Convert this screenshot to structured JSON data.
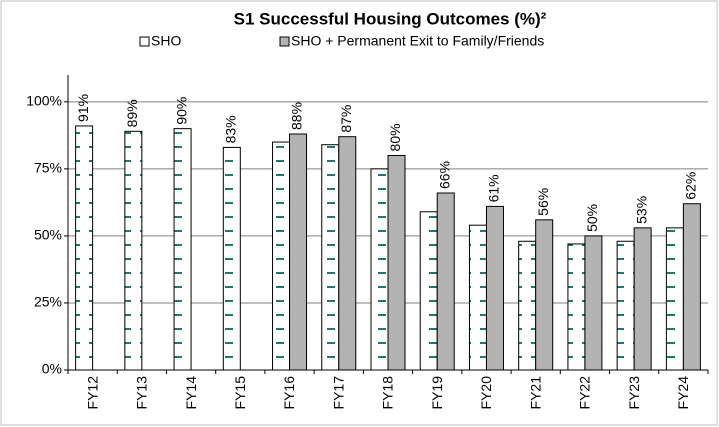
{
  "chart_data": {
    "type": "bar",
    "title": "S1 Successful Housing Outcomes (%)²",
    "categories": [
      "FY12",
      "FY13",
      "FY14",
      "FY15",
      "FY16",
      "FY17",
      "FY18",
      "FY19",
      "FY20",
      "FY21",
      "FY22",
      "FY23",
      "FY24"
    ],
    "series": [
      {
        "name": "SHO",
        "color": "#1f7a6e",
        "values": [
          91,
          89,
          90,
          83,
          85,
          84,
          75,
          59,
          54,
          48,
          47,
          48,
          53
        ],
        "value_labels": [
          "91%",
          "89%",
          "90%",
          "83%",
          null,
          null,
          null,
          null,
          null,
          null,
          null,
          null,
          null
        ]
      },
      {
        "name": "SHO + Permanent Exit to Family/Friends",
        "color": "#b3b3b3",
        "values": [
          null,
          null,
          null,
          null,
          88,
          87,
          80,
          66,
          61,
          56,
          50,
          53,
          62
        ],
        "value_labels": [
          null,
          null,
          null,
          null,
          "88%",
          "87%",
          "80%",
          "66%",
          "61%",
          "56%",
          "50%",
          "53%",
          "62%"
        ]
      }
    ],
    "ylim": [
      0,
      110
    ],
    "yticks": [
      {
        "value": 0,
        "label": "0%"
      },
      {
        "value": 25,
        "label": "25%"
      },
      {
        "value": 50,
        "label": "50%"
      },
      {
        "value": 75,
        "label": "75%"
      },
      {
        "value": 100,
        "label": "100%"
      }
    ],
    "grid": true,
    "legend": "top"
  }
}
